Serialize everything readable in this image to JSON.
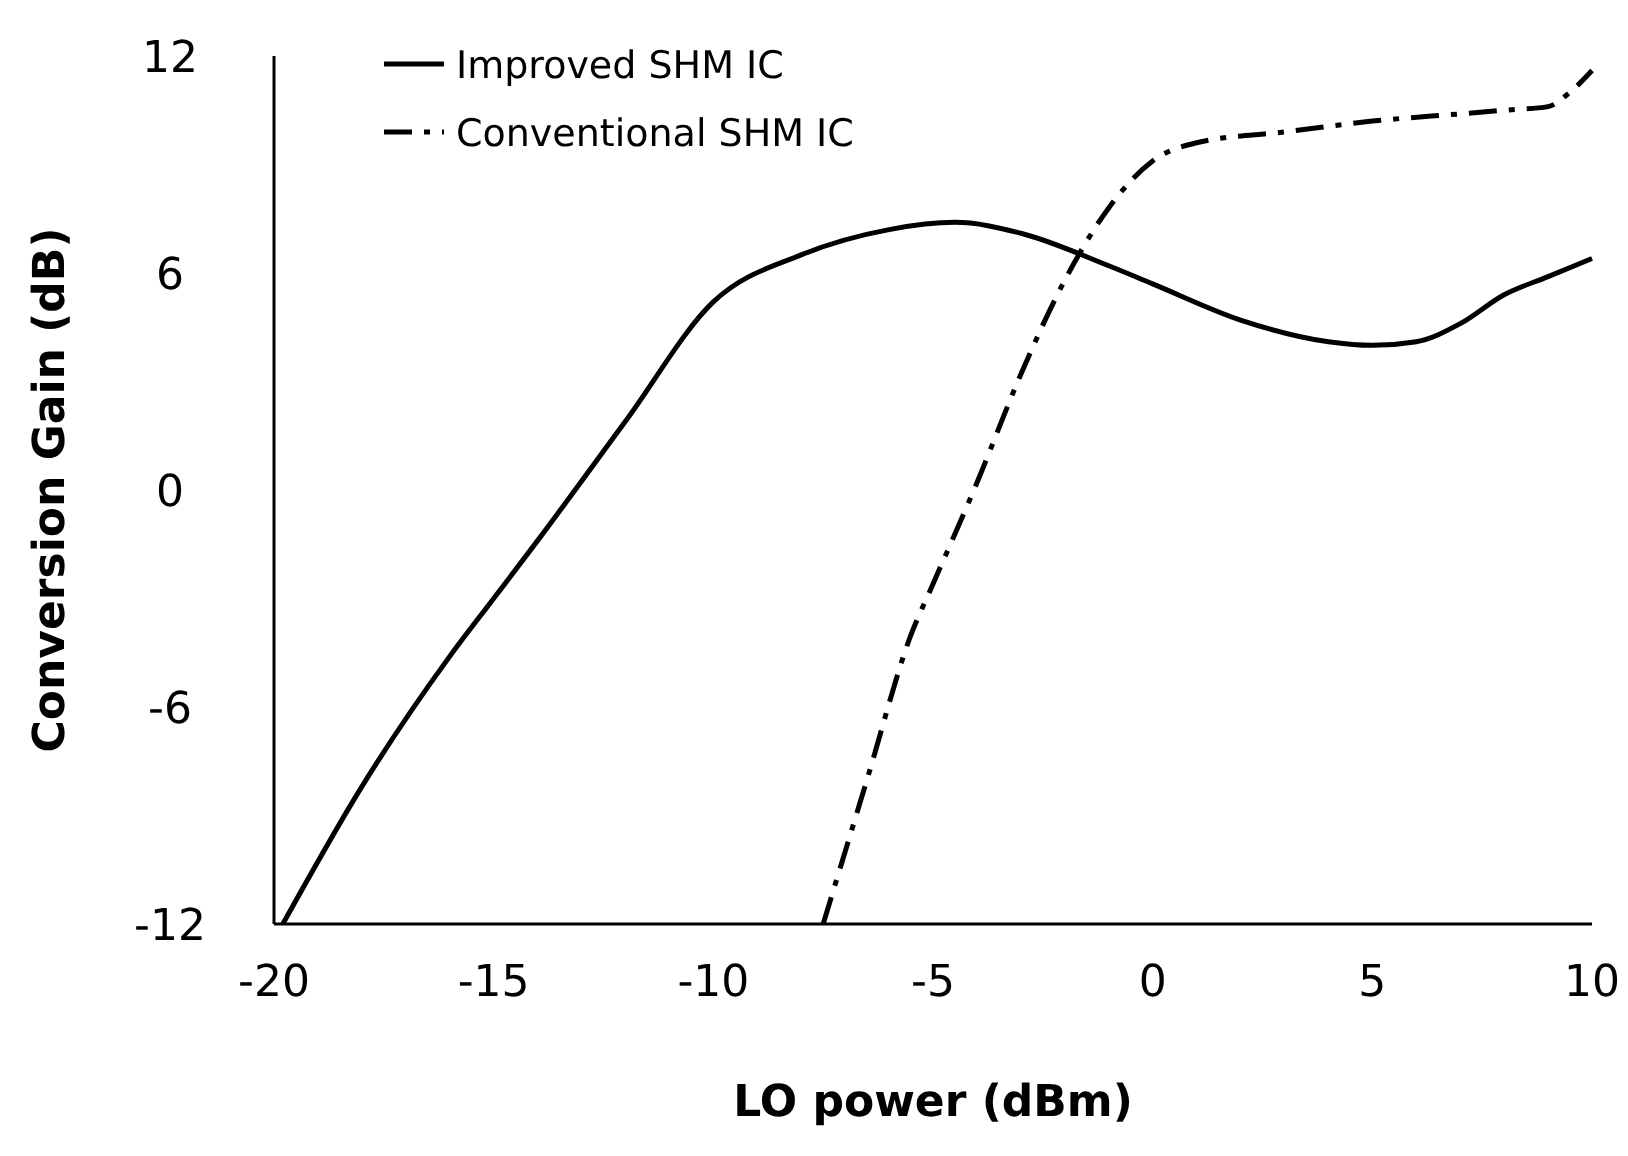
{
  "chart_data": {
    "type": "line",
    "xlabel": "LO power (dBm)",
    "ylabel": "Conversion Gain (dB)",
    "xlim": [
      -20,
      10
    ],
    "ylim": [
      -12,
      12
    ],
    "xticks": [
      -20,
      -15,
      -10,
      -5,
      0,
      5,
      10
    ],
    "yticks": [
      -12,
      -6,
      0,
      6,
      12
    ],
    "grid": false,
    "legend": "top left",
    "marker": "none",
    "series": [
      {
        "name": "Improved SHM IC",
        "color": "#000000",
        "line_style": "solid",
        "x": [
          -19.8,
          -18,
          -16,
          -15,
          -14,
          -12,
          -10,
          -8,
          -6,
          -4.5,
          -3,
          -1,
          0,
          2,
          4,
          5,
          6,
          7,
          8,
          9,
          10
        ],
        "values": [
          -12,
          -8.2,
          -4.6,
          -3,
          -1.4,
          1.9,
          5.2,
          6.5,
          7.2,
          7.4,
          7.1,
          6.2,
          5.7,
          4.7,
          4.1,
          4,
          4.1,
          4.6,
          5.4,
          5.9,
          6.4
        ]
      },
      {
        "name": "Conventional SHM IC",
        "color": "#000000",
        "line_style": "dashdot",
        "x": [
          -7.5,
          -6.5,
          -5.5,
          -5,
          -4,
          -3,
          -2,
          -1,
          0,
          1,
          3,
          5,
          7,
          8,
          9,
          9.5,
          10
        ],
        "values": [
          -12,
          -8,
          -4,
          -2.6,
          0.2,
          3.2,
          5.8,
          7.8,
          9.1,
          9.6,
          9.9,
          10.2,
          10.4,
          10.5,
          10.6,
          11,
          11.6
        ]
      }
    ]
  }
}
